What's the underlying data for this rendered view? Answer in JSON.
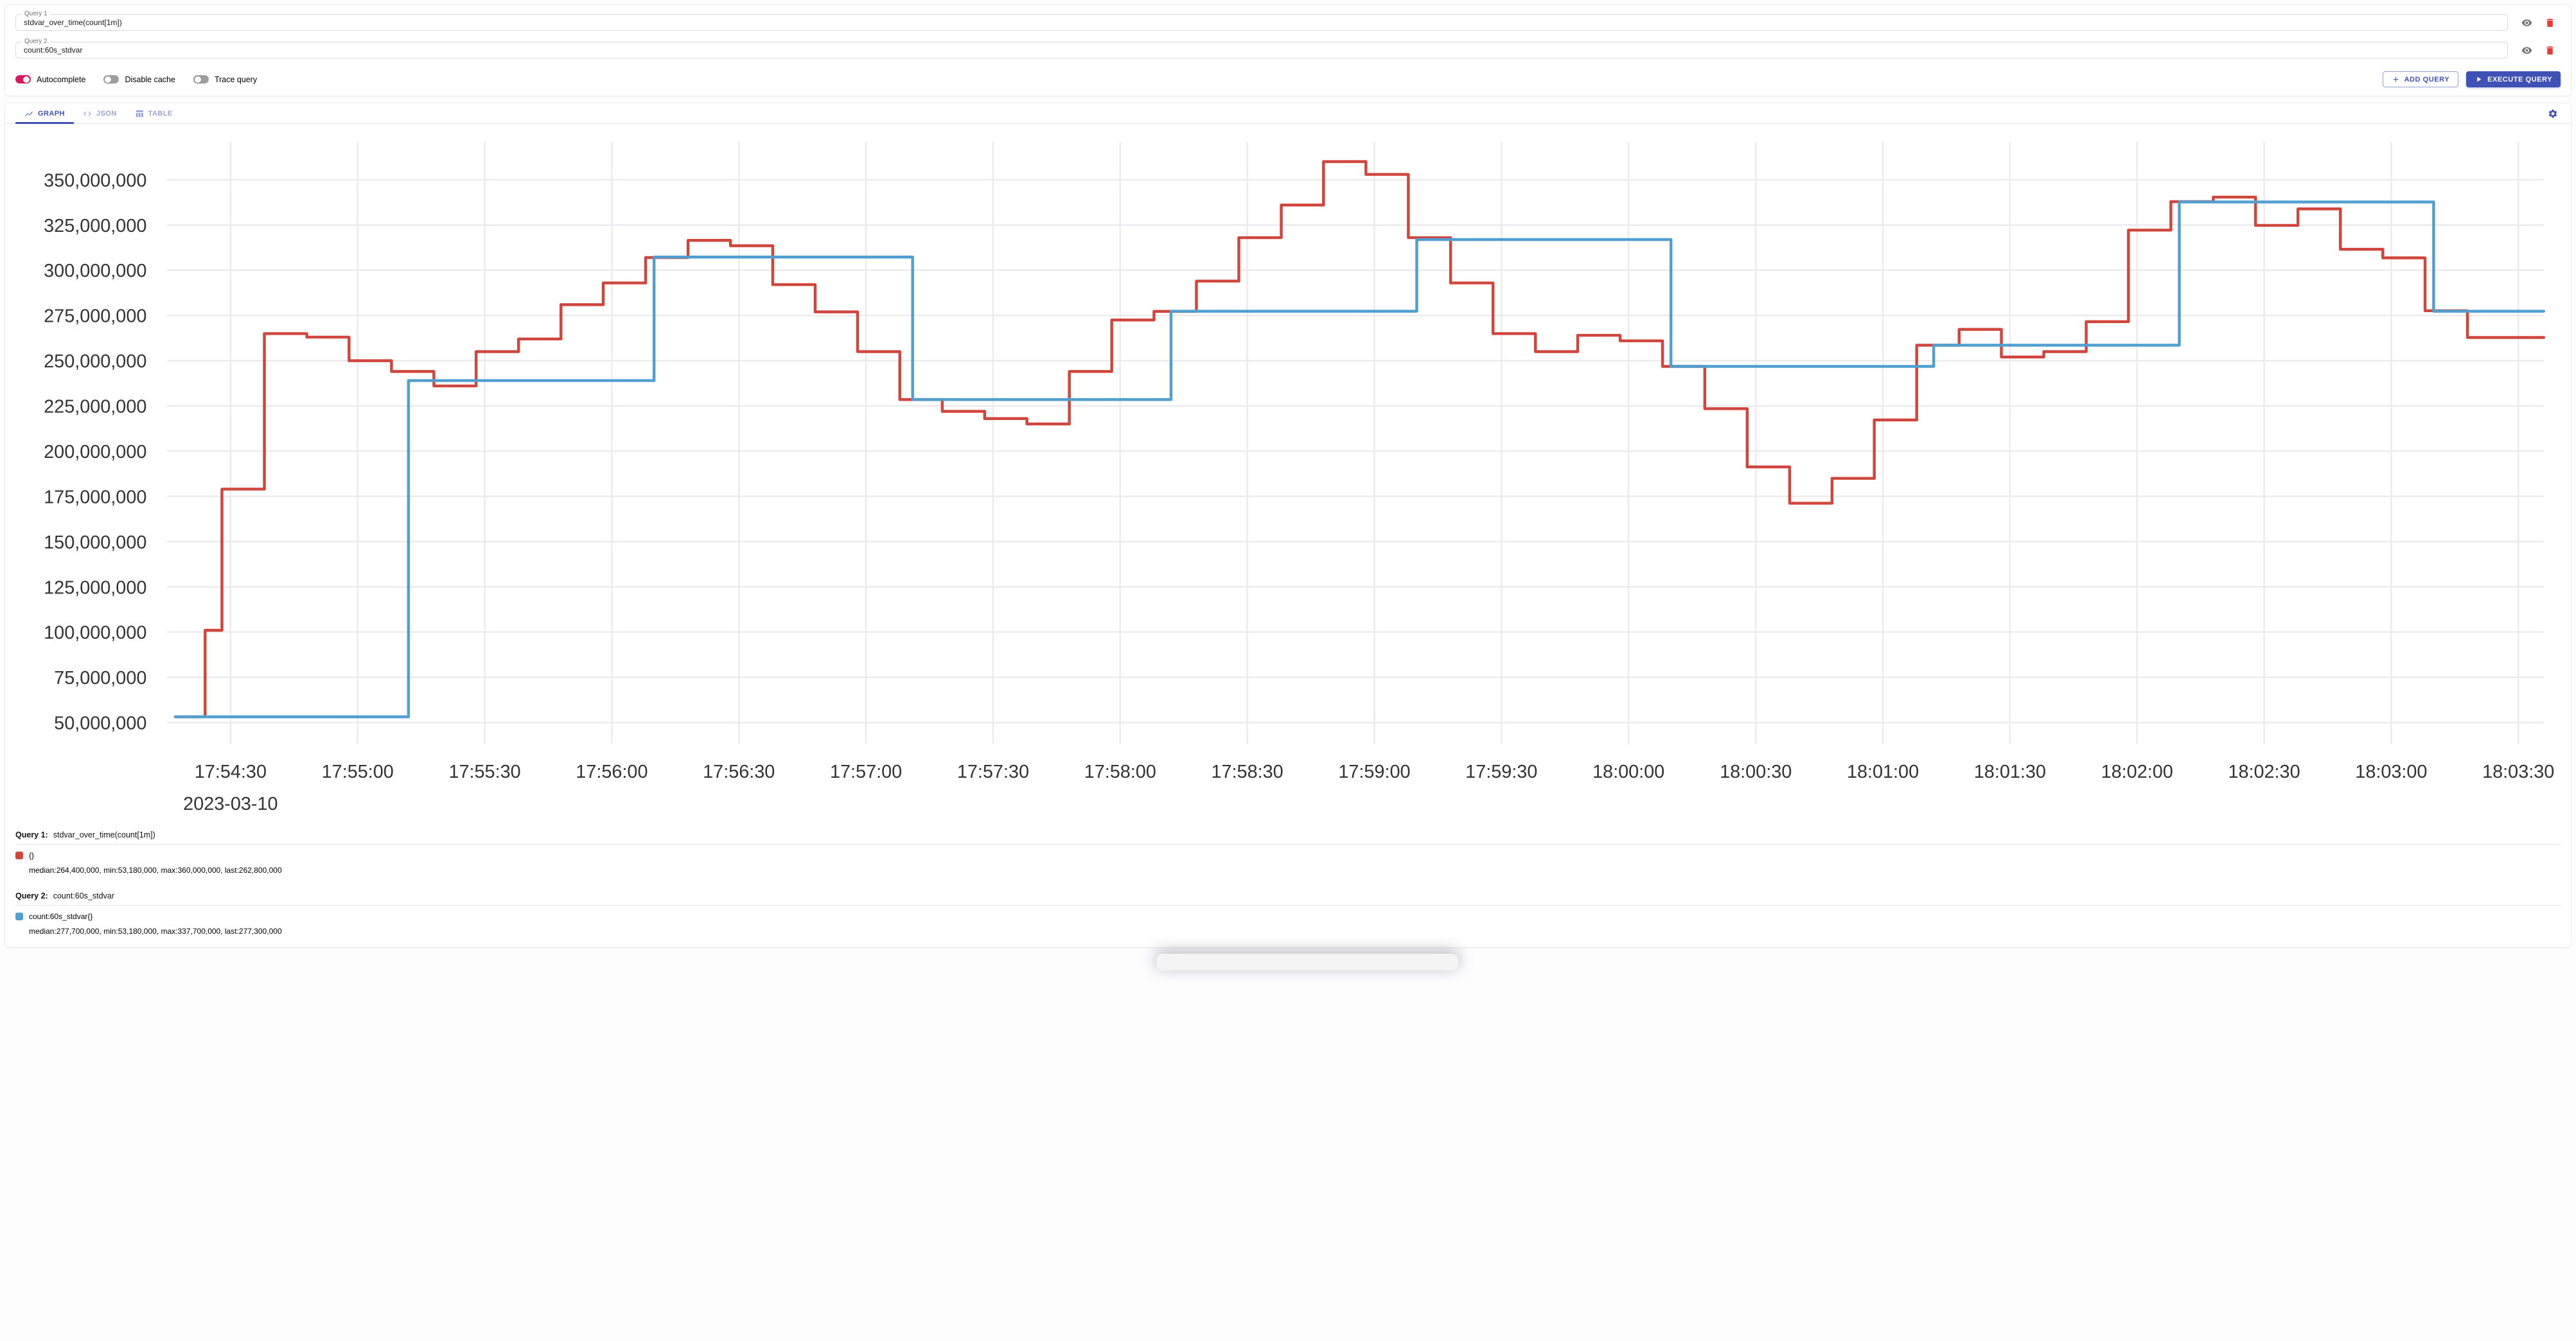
{
  "colors": {
    "primary": "#3f51b5",
    "toggle_on": "#d81b60",
    "trash": "#e53935",
    "series_red": "#d0453c",
    "series_blue": "#509fd0"
  },
  "queries": [
    {
      "label": "Query 1",
      "value": "stdvar_over_time(count[1m])",
      "underlined": "stdvar_over_time",
      "rest": "(count[1m])"
    },
    {
      "label": "Query 2",
      "value": "count:60s_stdvar"
    }
  ],
  "controls": {
    "toggles": [
      {
        "label": "Autocomplete",
        "on": true
      },
      {
        "label": "Disable cache",
        "on": false
      },
      {
        "label": "Trace query",
        "on": false
      }
    ],
    "add_query_label": "ADD QUERY",
    "execute_label": "EXECUTE QUERY"
  },
  "tabs": [
    {
      "label": "GRAPH",
      "icon": "line-chart-icon",
      "active": true
    },
    {
      "label": "JSON",
      "icon": "code-icon",
      "active": false
    },
    {
      "label": "TABLE",
      "icon": "table-icon",
      "active": false
    }
  ],
  "chart_data": {
    "type": "line",
    "style": "stepped",
    "x_unit": "seconds offset from 17:54:20 on 2023-03-10",
    "xlim": [
      -5,
      556
    ],
    "ylim": [
      38000000,
      371000000
    ],
    "grid": true,
    "legend_position": "bottom",
    "yticks": [
      50000000,
      75000000,
      100000000,
      125000000,
      150000000,
      175000000,
      200000000,
      225000000,
      250000000,
      275000000,
      300000000,
      325000000,
      350000000
    ],
    "xticks": [
      {
        "offset": 10,
        "label": "17:54:30",
        "date": "2023-03-10"
      },
      {
        "offset": 40,
        "label": "17:55:00"
      },
      {
        "offset": 70,
        "label": "17:55:30"
      },
      {
        "offset": 100,
        "label": "17:56:00"
      },
      {
        "offset": 130,
        "label": "17:56:30"
      },
      {
        "offset": 160,
        "label": "17:57:00"
      },
      {
        "offset": 190,
        "label": "17:57:30"
      },
      {
        "offset": 220,
        "label": "17:58:00"
      },
      {
        "offset": 250,
        "label": "17:58:30"
      },
      {
        "offset": 280,
        "label": "17:59:00"
      },
      {
        "offset": 310,
        "label": "17:59:30"
      },
      {
        "offset": 340,
        "label": "18:00:00"
      },
      {
        "offset": 370,
        "label": "18:00:30"
      },
      {
        "offset": 400,
        "label": "18:01:00"
      },
      {
        "offset": 430,
        "label": "18:01:30"
      },
      {
        "offset": 460,
        "label": "18:02:00"
      },
      {
        "offset": 490,
        "label": "18:02:30"
      },
      {
        "offset": 520,
        "label": "18:03:00"
      },
      {
        "offset": 550,
        "label": "18:03:30"
      }
    ],
    "series": [
      {
        "name": "stdvar_over_time(count[1m]) {}",
        "color": "#d0453c",
        "points": [
          [
            -3,
            53180000
          ],
          [
            4,
            101000000
          ],
          [
            8,
            179000000
          ],
          [
            18,
            265000000
          ],
          [
            28,
            263000000
          ],
          [
            38,
            250000000
          ],
          [
            48,
            244000000
          ],
          [
            58,
            236000000
          ],
          [
            68,
            255000000
          ],
          [
            78,
            262000000
          ],
          [
            88,
            281000000
          ],
          [
            98,
            293000000
          ],
          [
            108,
            307000000
          ],
          [
            118,
            316500000
          ],
          [
            128,
            313500000
          ],
          [
            138,
            292000000
          ],
          [
            148,
            277000000
          ],
          [
            158,
            255000000
          ],
          [
            168,
            228500000
          ],
          [
            178,
            222000000
          ],
          [
            188,
            218000000
          ],
          [
            198,
            215000000
          ],
          [
            208,
            244000000
          ],
          [
            218,
            272500000
          ],
          [
            228,
            277200000
          ],
          [
            238,
            294000000
          ],
          [
            248,
            318000000
          ],
          [
            258,
            336000000
          ],
          [
            268,
            360000000
          ],
          [
            278,
            353000000
          ],
          [
            288,
            318000000
          ],
          [
            298,
            293000000
          ],
          [
            308,
            265000000
          ],
          [
            318,
            255000000
          ],
          [
            328,
            264000000
          ],
          [
            338,
            261000000
          ],
          [
            348,
            246800000
          ],
          [
            358,
            223500000
          ],
          [
            368,
            191300000
          ],
          [
            378,
            171200000
          ],
          [
            388,
            185000000
          ],
          [
            398,
            217200000
          ],
          [
            408,
            258500000
          ],
          [
            418,
            267300000
          ],
          [
            428,
            252000000
          ],
          [
            438,
            255000000
          ],
          [
            448,
            271600000
          ],
          [
            458,
            322200000
          ],
          [
            468,
            337900000
          ],
          [
            478,
            340400000
          ],
          [
            488,
            324800000
          ],
          [
            498,
            333900000
          ],
          [
            508,
            311600000
          ],
          [
            518,
            306800000
          ],
          [
            528,
            277600000
          ],
          [
            538,
            262800000
          ]
        ]
      },
      {
        "name": "count:60s_stdvar{}",
        "color": "#509fd0",
        "points": [
          [
            -3,
            53180000
          ],
          [
            52,
            239000000
          ],
          [
            110,
            307300000
          ],
          [
            171,
            228500000
          ],
          [
            232,
            277300000
          ],
          [
            290,
            317000000
          ],
          [
            350,
            246800000
          ],
          [
            412,
            258500000
          ],
          [
            470,
            337700000
          ],
          [
            530,
            277300000
          ]
        ]
      }
    ]
  },
  "legend": [
    {
      "query_label": "Query 1:",
      "query": "stdvar_over_time(count[1m])",
      "series_label": "{}",
      "stats": "median:264,400,000, min:53,180,000, max:360,000,000, last:262,800,000"
    },
    {
      "query_label": "Query 2:",
      "query": "count:60s_stdvar",
      "series_label": "count:60s_stdvar{}",
      "stats": "median:277,700,000, min:53,180,000, max:337,700,000, last:277,300,000"
    }
  ]
}
